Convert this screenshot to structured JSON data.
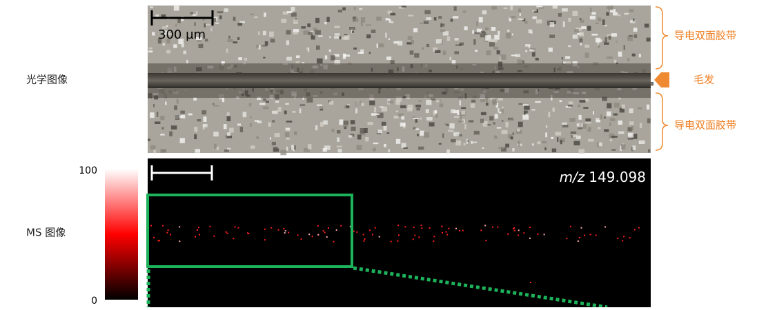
{
  "labels": {
    "optical": "光学图像",
    "ms": "MS 图像"
  },
  "optical_image": {
    "scale_bar": "300 µm"
  },
  "annotations": {
    "tape_top": "导电双面胶带",
    "hair": "毛发",
    "tape_bottom": "导电双面胶带"
  },
  "ms_image": {
    "mz_label": "m/z",
    "mz_value": "149.098"
  },
  "colorbar": {
    "max": 100,
    "min": 0
  }
}
